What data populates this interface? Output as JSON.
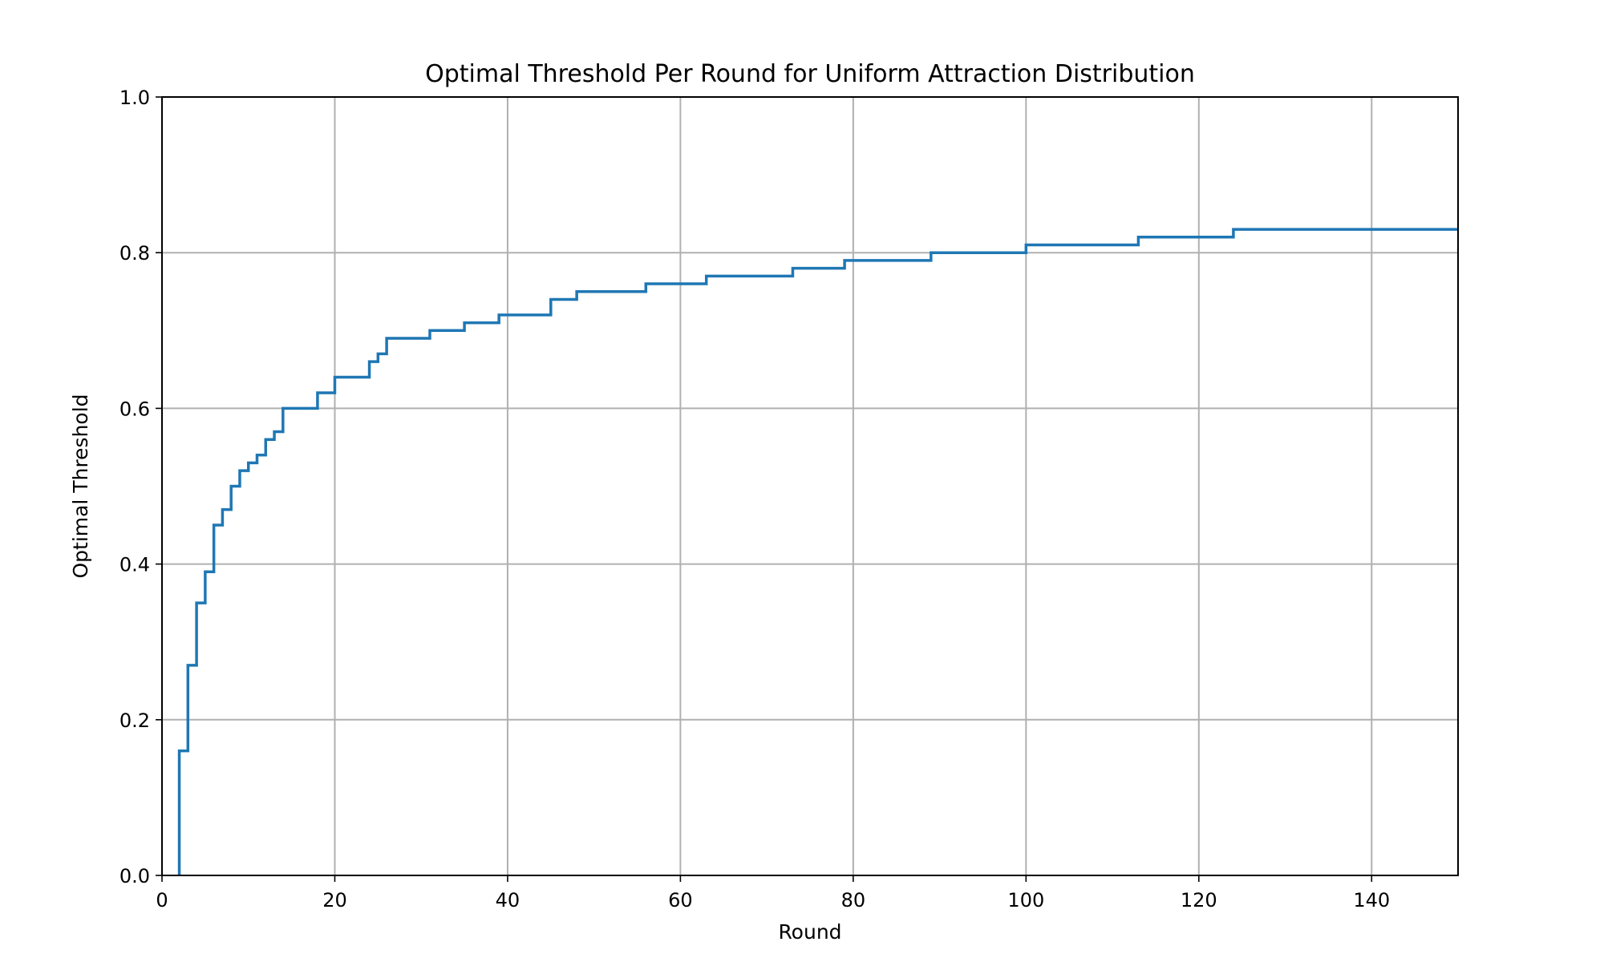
{
  "chart_data": {
    "type": "line",
    "drawstyle": "steps-post",
    "title": "Optimal Threshold Per Round for Uniform Attraction Distribution",
    "xlabel": "Round",
    "ylabel": "Optimal Threshold",
    "xlim": [
      0,
      150
    ],
    "ylim": [
      0,
      1
    ],
    "xticks": [
      0,
      20,
      40,
      60,
      80,
      100,
      120,
      140
    ],
    "xtick_labels": [
      "0",
      "20",
      "40",
      "60",
      "80",
      "100",
      "120",
      "140"
    ],
    "yticks": [
      0,
      0.2,
      0.4,
      0.6,
      0.8,
      1.0
    ],
    "ytick_labels": [
      "0.0",
      "0.2",
      "0.4",
      "0.6",
      "0.8",
      "1.0"
    ],
    "grid": true,
    "legend": "none",
    "series": [
      {
        "color": "#1f77b4",
        "x": [
          2,
          3,
          4,
          5,
          6,
          7,
          8,
          9,
          10,
          11,
          12,
          13,
          14,
          18,
          20,
          24,
          25,
          26,
          31,
          35,
          39,
          45,
          48,
          56,
          63,
          73,
          79,
          89,
          100,
          113,
          124,
          150
        ],
        "y": [
          0.16,
          0.27,
          0.35,
          0.39,
          0.45,
          0.47,
          0.5,
          0.52,
          0.53,
          0.54,
          0.56,
          0.57,
          0.6,
          0.62,
          0.64,
          0.66,
          0.67,
          0.69,
          0.7,
          0.71,
          0.72,
          0.74,
          0.75,
          0.76,
          0.77,
          0.78,
          0.79,
          0.8,
          0.81,
          0.82,
          0.83,
          0.83
        ]
      }
    ]
  }
}
